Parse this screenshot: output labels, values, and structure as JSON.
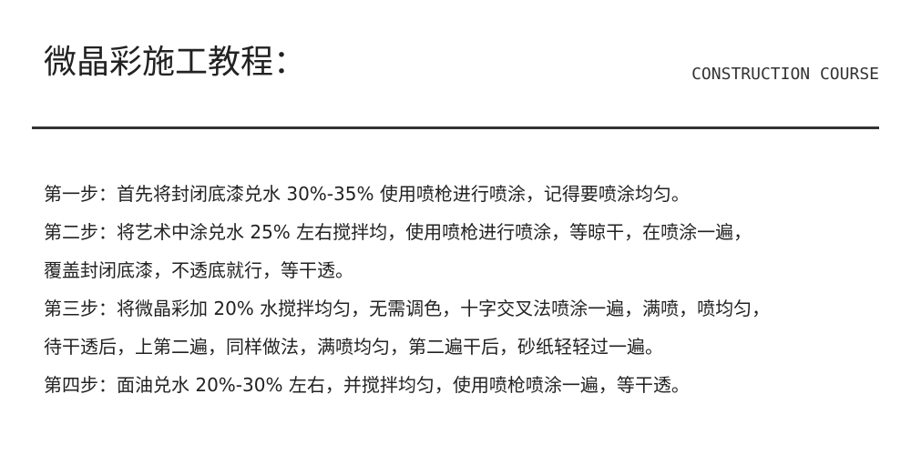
{
  "header": {
    "title": "微晶彩施工教程：",
    "subtitle": "CONSTRUCTION COURSE"
  },
  "body": {
    "lines": [
      "第一步：首先将封闭底漆兑水 30%-35% 使用喷枪进行喷涂，记得要喷涂均匀。",
      "第二步：将艺术中涂兑水 25% 左右搅拌均，使用喷枪进行喷涂，等晾干，在喷涂一遍，",
      "覆盖封闭底漆，不透底就行，等干透。",
      "第三步：将微晶彩加 20% 水搅拌均匀，无需调色，十字交叉法喷涂一遍，满喷，喷均匀，",
      "待干透后，上第二遍，同样做法，满喷均匀，第二遍干后，砂纸轻轻过一遍。",
      "第四步：面油兑水 20%-30% 左右，并搅拌均匀，使用喷枪喷涂一遍，等干透。"
    ]
  }
}
